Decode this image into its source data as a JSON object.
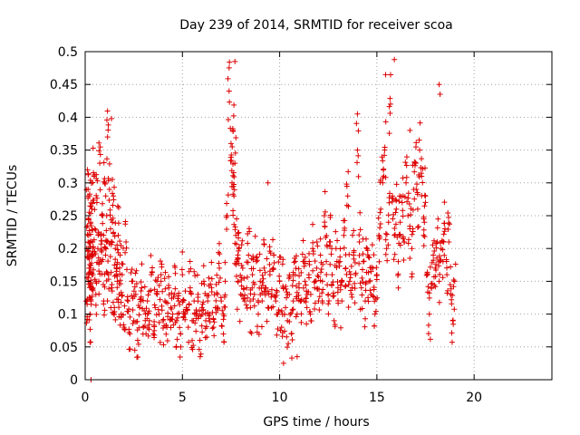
{
  "chart_data": {
    "type": "scatter",
    "title": "Day 239 of 2014, SRMTID for receiver scoa",
    "xlabel": "GPS time / hours",
    "ylabel": "SRMTID / TECUs",
    "xlim": [
      0,
      24
    ],
    "ylim": [
      0,
      0.5
    ],
    "x_ticks": [
      0,
      5,
      10,
      15,
      20
    ],
    "x_tick_labels": [
      "0",
      "5",
      "10",
      "15",
      "20"
    ],
    "y_ticks": [
      0,
      0.05,
      0.1,
      0.15,
      0.2,
      0.25,
      0.3,
      0.35,
      0.4,
      0.45,
      0.5
    ],
    "y_tick_labels": [
      "0",
      "0.05",
      "0.1",
      "0.15",
      "0.2",
      "0.25",
      "0.3",
      "0.35",
      "0.4",
      "0.45",
      "0.5"
    ],
    "grid": true,
    "marker": "+",
    "color": "#dd0000",
    "series": [
      {
        "name": "SRMTID",
        "x": [
          0.05,
          0.08,
          0.12,
          0.15,
          0.18,
          0.2,
          0.22,
          0.25,
          0.28,
          0.3,
          0.32,
          0.35,
          0.38,
          0.4,
          0.45,
          0.5,
          0.55,
          0.6,
          0.65,
          0.7,
          0.75,
          0.8,
          0.85,
          0.9,
          0.95,
          1.0,
          1.05,
          1.1,
          1.15,
          1.2,
          1.25,
          1.3,
          1.35,
          1.4,
          1.45,
          1.5,
          1.55,
          1.6,
          1.65,
          1.7,
          1.75,
          1.8,
          1.85,
          1.9,
          2.0,
          2.1,
          2.2,
          2.3,
          2.4,
          2.5,
          2.6,
          2.7,
          2.8,
          2.9,
          3.0,
          3.1,
          3.2,
          3.3,
          3.4,
          3.5,
          3.6,
          3.7,
          3.8,
          3.9,
          4.0,
          4.1,
          4.2,
          4.3,
          4.4,
          4.5,
          4.6,
          4.7,
          4.8,
          4.9,
          5.0,
          5.1,
          5.2,
          5.3,
          5.4,
          5.5,
          5.6,
          5.7,
          5.8,
          5.9,
          6.0,
          6.1,
          6.2,
          6.3,
          6.4,
          6.5,
          6.6,
          6.7,
          6.8,
          6.9,
          7.0,
          7.1,
          7.2,
          7.3,
          7.4,
          7.5,
          7.55,
          7.6,
          7.65,
          7.7,
          7.75,
          7.8,
          7.85,
          7.9,
          8.0,
          8.1,
          8.2,
          8.3,
          8.4,
          8.5,
          8.6,
          8.7,
          8.8,
          8.9,
          9.0,
          9.1,
          9.2,
          9.3,
          9.4,
          9.5,
          9.6,
          9.7,
          9.8,
          9.9,
          10.0,
          10.1,
          10.2,
          10.3,
          10.4,
          10.5,
          10.6,
          10.7,
          10.8,
          10.9,
          11.0,
          11.1,
          11.2,
          11.3,
          11.4,
          11.5,
          11.6,
          11.7,
          11.8,
          11.9,
          12.0,
          12.1,
          12.2,
          12.3,
          12.4,
          12.5,
          12.6,
          12.7,
          12.8,
          12.9,
          13.0,
          13.1,
          13.2,
          13.3,
          13.4,
          13.5,
          13.6,
          13.7,
          13.8,
          13.9,
          14.0,
          14.1,
          14.2,
          14.3,
          14.4,
          14.5,
          14.6,
          14.7,
          14.8,
          14.9,
          15.0,
          15.1,
          15.2,
          15.3,
          15.4,
          15.5,
          15.6,
          15.7,
          15.8,
          15.9,
          16.0,
          16.1,
          16.2,
          16.3,
          16.4,
          16.5,
          16.6,
          16.7,
          16.8,
          16.9,
          17.0,
          17.1,
          17.2,
          17.3,
          17.4,
          17.5,
          17.6,
          17.7,
          17.8,
          17.9,
          18.0,
          18.1,
          18.2,
          18.3,
          18.4,
          18.5,
          18.6,
          18.7,
          18.8,
          18.9,
          19.0,
          0.3,
          0.25,
          0.18,
          0.35,
          0.12,
          0.2,
          0.32,
          0.15,
          0.22,
          0.17,
          0.28,
          0.1,
          0.24,
          0.19,
          0.14,
          0.26,
          0.21,
          0.16,
          0.31,
          0.23,
          0.13,
          0.27,
          0.2,
          0.15,
          0.33,
          0.22,
          0.18,
          0.25,
          0.12,
          0.3,
          0.19,
          0.21,
          0.37,
          0.16,
          0.29,
          0.23,
          0.14,
          0.24,
          0.28,
          0.11,
          0.2,
          0.17,
          0.15,
          0.22,
          0.13,
          0.19,
          0.1,
          0.16,
          0.08,
          0.21,
          0.12,
          0.07,
          0.15,
          0.09,
          0.13,
          0.06,
          0.11,
          0.14,
          0.08,
          0.1,
          0.12,
          0.09,
          0.16,
          0.07,
          0.11,
          0.13,
          0.1,
          0.15,
          0.09,
          0.12,
          0.08,
          0.14,
          0.11,
          0.1,
          0.13,
          0.09,
          0.12,
          0.07,
          0.16,
          0.1,
          0.11,
          0.08,
          0.14,
          0.09,
          0.12,
          0.1,
          0.13,
          0.06,
          0.11,
          0.15,
          0.09,
          0.12,
          0.1,
          0.14,
          0.08,
          0.11,
          0.13,
          0.17,
          0.12,
          0.1,
          0.15,
          0.25,
          0.44,
          0.36,
          0.3,
          0.38,
          0.28,
          0.33,
          0.22,
          0.18,
          0.15,
          0.2,
          0.13,
          0.17,
          0.12,
          0.14,
          0.19,
          0.11,
          0.16,
          0.13,
          0.18,
          0.1,
          0.15,
          0.12,
          0.17,
          0.14,
          0.11,
          0.16,
          0.13,
          0.19,
          0.12,
          0.1,
          0.15,
          0.08,
          0.14,
          0.11,
          0.09,
          0.13,
          0.07,
          0.12,
          0.16,
          0.1,
          0.14,
          0.12,
          0.18,
          0.15,
          0.11,
          0.16,
          0.13,
          0.2,
          0.14,
          0.17,
          0.12,
          0.19,
          0.15,
          0.25,
          0.18,
          0.13,
          0.21,
          0.16,
          0.09,
          0.2,
          0.14,
          0.18,
          0.12,
          0.22,
          0.17,
          0.28,
          0.15,
          0.13,
          0.19,
          0.16,
          0.35,
          0.21,
          0.14,
          0.18,
          0.12,
          0.2,
          0.15,
          0.13,
          0.17,
          0.1,
          0.16,
          0.22,
          0.26,
          0.3,
          0.35,
          0.2,
          0.24,
          0.42,
          0.28,
          0.22,
          0.26,
          0.18,
          0.24,
          0.27,
          0.21,
          0.3,
          0.25,
          0.23,
          0.2,
          0.29,
          0.33,
          0.26,
          0.35,
          0.31,
          0.22,
          0.28,
          0.16,
          0.1,
          0.14,
          0.19,
          0.17,
          0.21,
          0.15,
          0.2,
          0.18,
          0.23,
          0.16,
          0.21,
          0.13,
          0.09,
          0.15,
          0.12,
          0.17,
          0.2,
          0.16,
          0.18
        ]
      }
    ],
    "outliers": [
      {
        "x": 7.7,
        "y": 0.485
      },
      {
        "x": 15.9,
        "y": 0.488
      },
      {
        "x": 15.45,
        "y": 0.465
      },
      {
        "x": 18.2,
        "y": 0.45
      },
      {
        "x": 18.25,
        "y": 0.435
      },
      {
        "x": 0.3,
        "y": 0.0
      },
      {
        "x": 10.2,
        "y": 0.025
      },
      {
        "x": 10.9,
        "y": 0.035
      },
      {
        "x": 9.4,
        "y": 0.3
      },
      {
        "x": 14.0,
        "y": 0.405
      },
      {
        "x": 16.7,
        "y": 0.38
      },
      {
        "x": 1.35,
        "y": 0.398
      }
    ]
  }
}
